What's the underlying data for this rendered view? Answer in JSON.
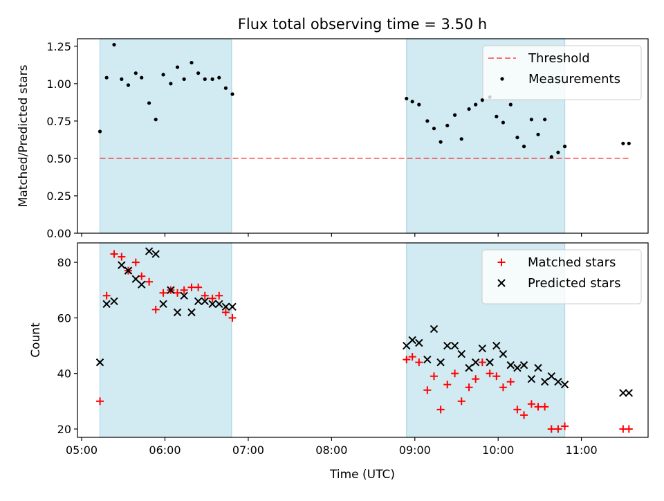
{
  "chart_data": {
    "title": "Flux total observing time = 3.50 h",
    "xlabel": "Time (UTC)",
    "x_ticks": [
      "05:00",
      "06:00",
      "07:00",
      "08:00",
      "09:00",
      "10:00",
      "11:00"
    ],
    "x_tick_hours": [
      5,
      6,
      7,
      8,
      9,
      10,
      11
    ],
    "xlim_hours": [
      4.95,
      11.8
    ],
    "shaded_intervals_hours": [
      [
        5.22,
        6.8
      ],
      [
        8.9,
        10.8
      ]
    ],
    "colors": {
      "shade": "#add8e6",
      "threshold": "#ff0000",
      "matched": "#ff0000",
      "predicted": "#000000",
      "measurements": "#000000"
    },
    "panels": [
      {
        "type": "scatter",
        "ylabel": "Matched/Predicted stars",
        "ylim": [
          0,
          1.3
        ],
        "y_ticks": [
          0.0,
          0.25,
          0.5,
          0.75,
          1.0,
          1.25
        ],
        "y_tick_labels": [
          "0.00",
          "0.25",
          "0.50",
          "0.75",
          "1.00",
          "1.25"
        ],
        "legend_position": "upper-right",
        "threshold": {
          "name": "Threshold",
          "y": 0.5,
          "x_range_hours": [
            5.22,
            11.57
          ]
        },
        "series": [
          {
            "name": "Measurements",
            "marker": "dot",
            "x_hours": [
              5.22,
              5.3,
              5.39,
              5.48,
              5.56,
              5.65,
              5.72,
              5.81,
              5.89,
              5.98,
              6.07,
              6.15,
              6.23,
              6.32,
              6.4,
              6.48,
              6.57,
              6.65,
              6.73,
              6.81,
              8.9,
              8.97,
              9.05,
              9.15,
              9.23,
              9.31,
              9.39,
              9.48,
              9.56,
              9.65,
              9.73,
              9.81,
              9.9,
              9.98,
              10.06,
              10.15,
              10.23,
              10.31,
              10.4,
              10.48,
              10.56,
              10.64,
              10.72,
              10.8,
              11.5,
              11.57
            ],
            "values": [
              0.68,
              1.04,
              1.26,
              1.03,
              0.99,
              1.07,
              1.04,
              0.87,
              0.76,
              1.06,
              1.0,
              1.11,
              1.03,
              1.14,
              1.07,
              1.03,
              1.03,
              1.04,
              0.97,
              0.93,
              0.9,
              0.88,
              0.86,
              0.75,
              0.7,
              0.61,
              0.72,
              0.79,
              0.63,
              0.83,
              0.86,
              0.89,
              0.91,
              0.78,
              0.74,
              0.86,
              0.64,
              0.58,
              0.76,
              0.66,
              0.76,
              0.51,
              0.54,
              0.58,
              0.6,
              0.6
            ]
          }
        ]
      },
      {
        "type": "scatter",
        "ylabel": "Count",
        "ylim": [
          17,
          87
        ],
        "y_ticks": [
          20,
          40,
          60,
          80
        ],
        "y_tick_labels": [
          "20",
          "40",
          "60",
          "80"
        ],
        "legend_position": "upper-right",
        "series": [
          {
            "name": "Matched stars",
            "marker": "plus",
            "x_hours": [
              5.22,
              5.3,
              5.39,
              5.48,
              5.56,
              5.65,
              5.72,
              5.81,
              5.89,
              5.98,
              6.07,
              6.15,
              6.23,
              6.32,
              6.4,
              6.48,
              6.57,
              6.65,
              6.73,
              6.81,
              8.9,
              8.97,
              9.05,
              9.15,
              9.23,
              9.31,
              9.39,
              9.48,
              9.56,
              9.65,
              9.73,
              9.81,
              9.9,
              9.98,
              10.06,
              10.15,
              10.23,
              10.31,
              10.4,
              10.48,
              10.56,
              10.64,
              10.72,
              10.8,
              11.5,
              11.57
            ],
            "values": [
              30,
              68,
              83,
              82,
              77,
              80,
              75,
              73,
              63,
              69,
              70,
              69,
              70,
              71,
              71,
              68,
              67,
              68,
              62,
              60,
              45,
              46,
              44,
              34,
              39,
              27,
              36,
              40,
              30,
              35,
              38,
              44,
              40,
              39,
              35,
              37,
              27,
              25,
              29,
              28,
              28,
              20,
              20,
              21,
              20,
              20
            ]
          },
          {
            "name": "Predicted stars",
            "marker": "x",
            "x_hours": [
              5.22,
              5.3,
              5.39,
              5.48,
              5.56,
              5.65,
              5.72,
              5.81,
              5.89,
              5.98,
              6.07,
              6.15,
              6.23,
              6.32,
              6.4,
              6.48,
              6.57,
              6.65,
              6.73,
              6.81,
              8.9,
              8.97,
              9.05,
              9.15,
              9.23,
              9.31,
              9.39,
              9.48,
              9.56,
              9.65,
              9.73,
              9.81,
              9.9,
              9.98,
              10.06,
              10.15,
              10.23,
              10.31,
              10.4,
              10.48,
              10.56,
              10.64,
              10.72,
              10.8,
              11.5,
              11.57
            ],
            "values": [
              44,
              65,
              66,
              79,
              77,
              74,
              72,
              84,
              83,
              65,
              70,
              62,
              68,
              62,
              66,
              66,
              65,
              65,
              64,
              64,
              50,
              52,
              51,
              45,
              56,
              44,
              50,
              50,
              47,
              42,
              44,
              49,
              44,
              50,
              47,
              43,
              42,
              43,
              38,
              42,
              37,
              39,
              37,
              36,
              33,
              33
            ]
          }
        ]
      }
    ]
  }
}
